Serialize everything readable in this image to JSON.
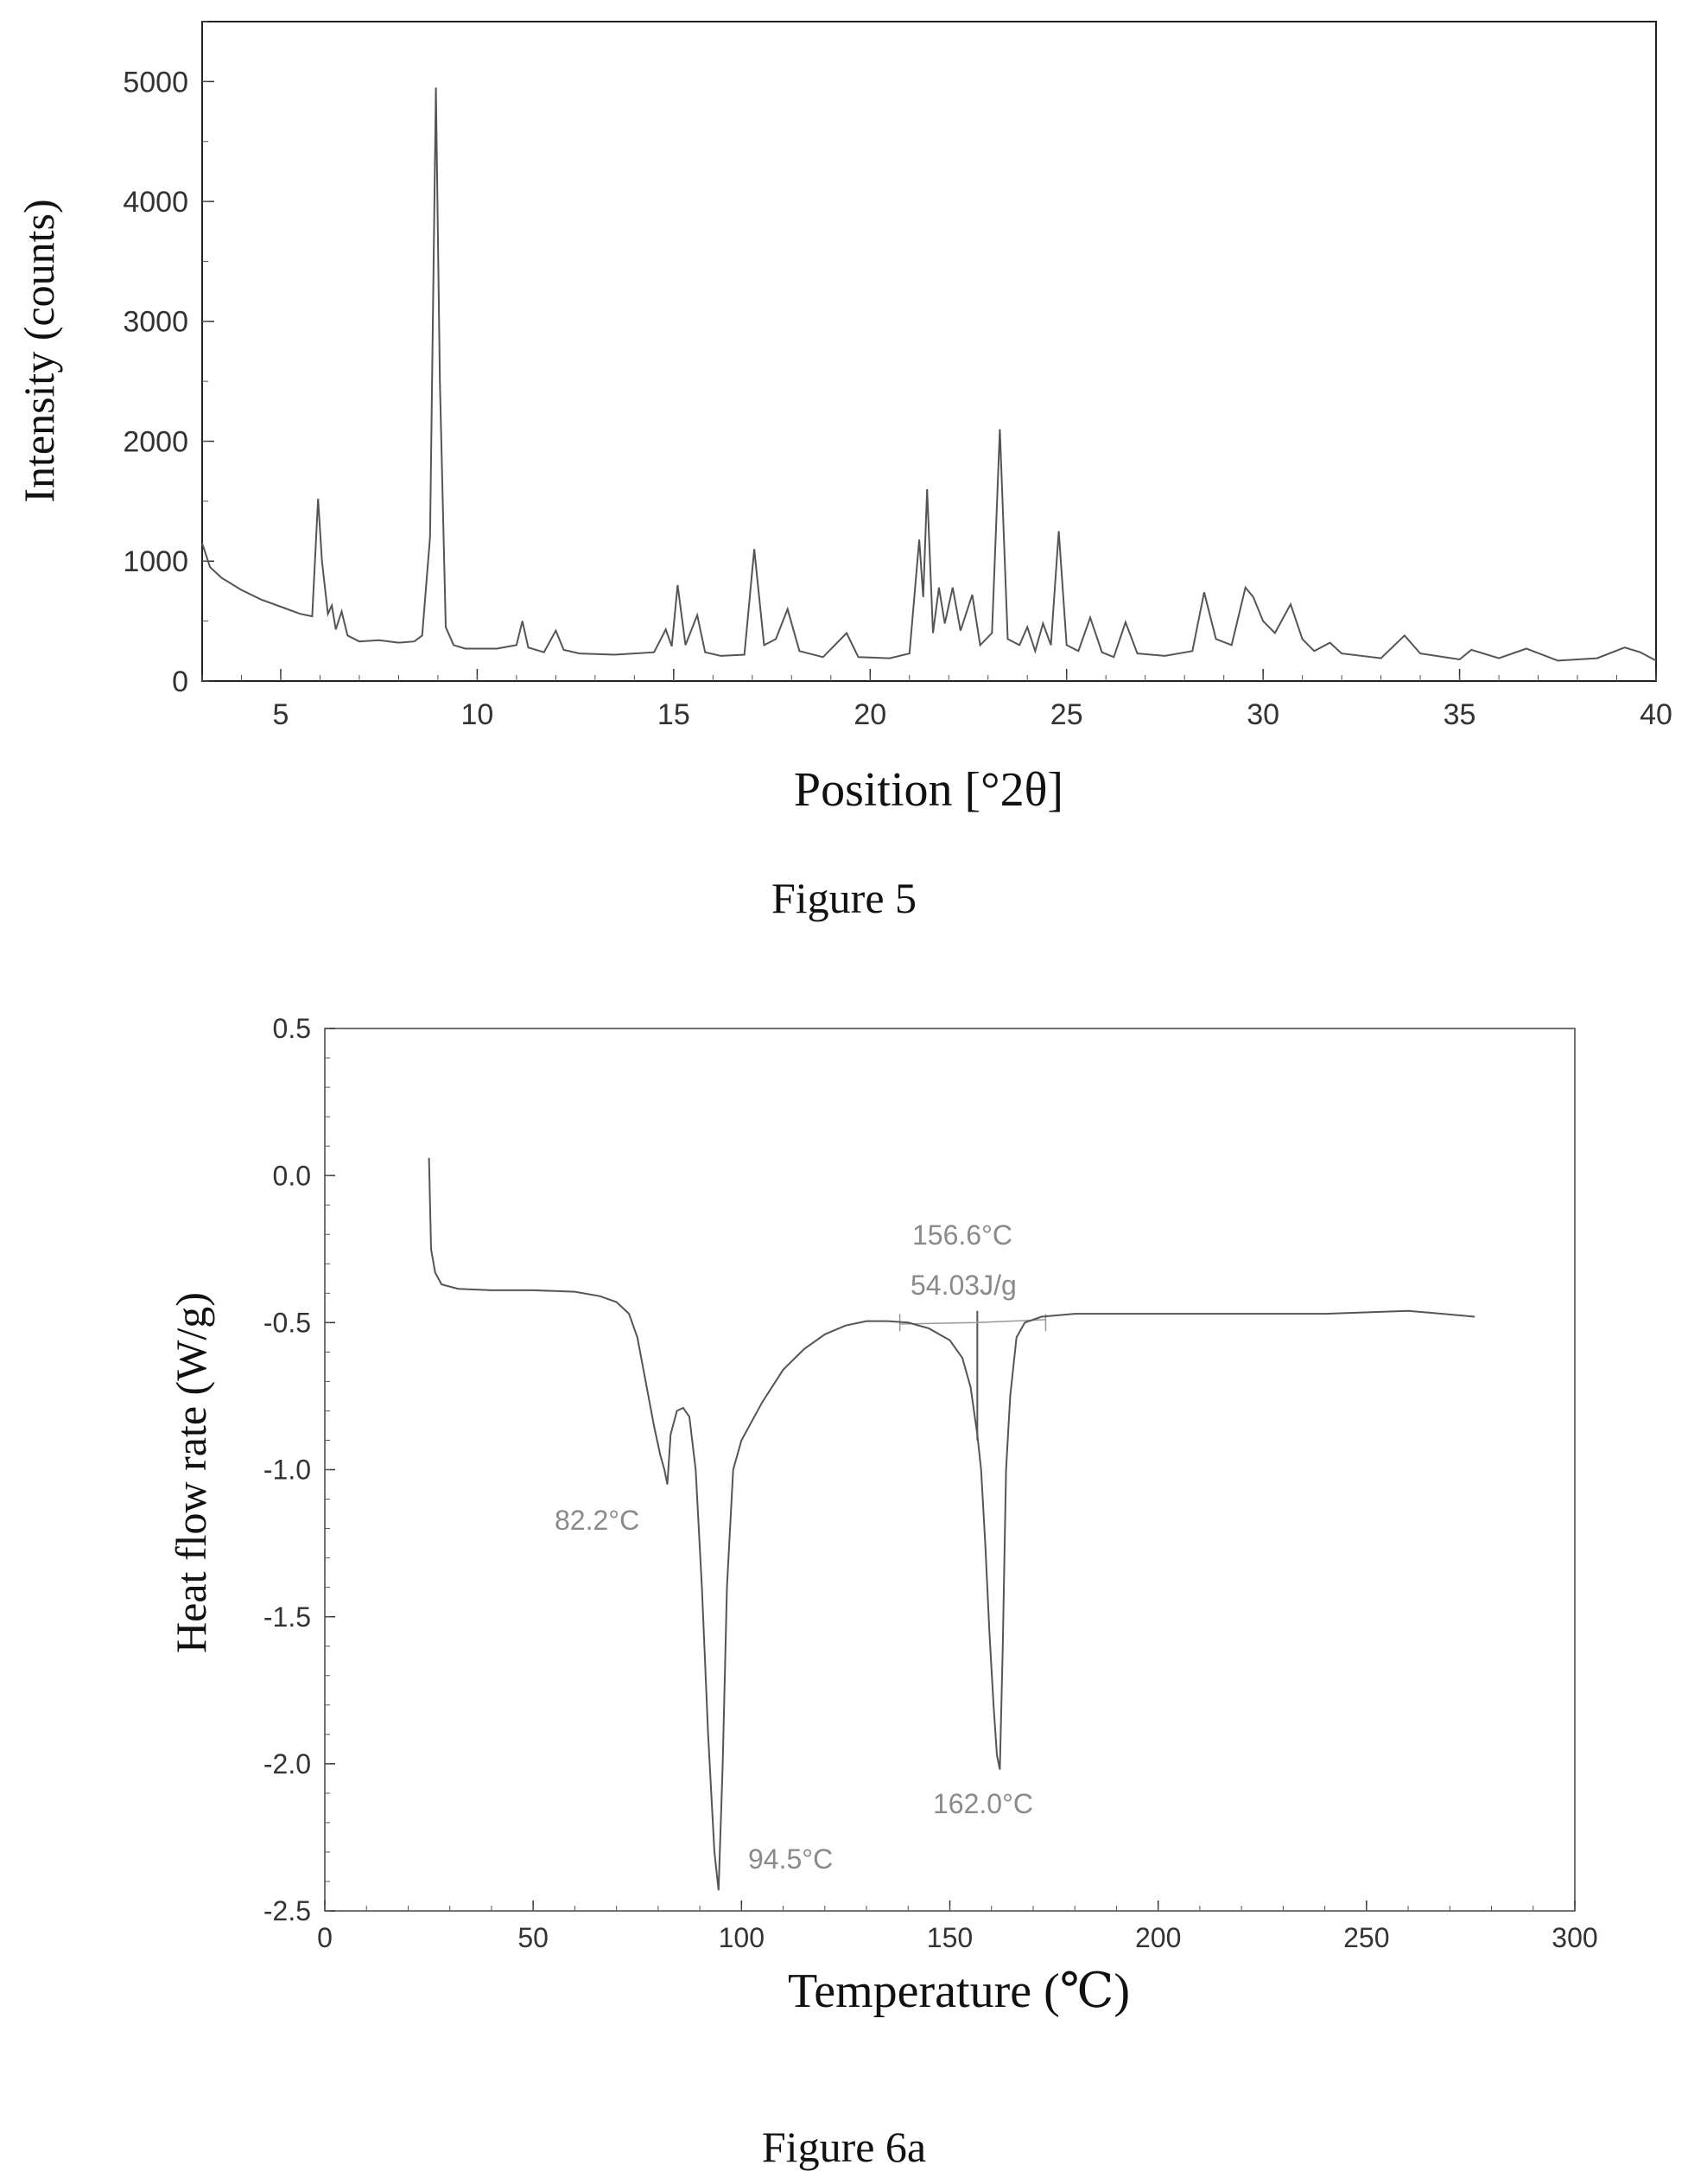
{
  "chart_data": [
    {
      "type": "line",
      "xlabel": "Position [°2θ]",
      "ylabel": "Intensity (counts)",
      "xlim": [
        3,
        40
      ],
      "ylim": [
        0,
        5500
      ],
      "xticks": [
        5,
        10,
        15,
        20,
        25,
        30,
        35,
        40
      ],
      "yticks": [
        0,
        1000,
        2000,
        3000,
        4000,
        5000
      ],
      "grid": false,
      "series": [
        {
          "x": [
            3.0,
            3.2,
            3.5,
            4.0,
            4.5,
            5.0,
            5.5,
            5.8,
            5.95,
            6.05,
            6.2,
            6.3,
            6.4,
            6.55,
            6.7,
            7.0,
            7.5,
            8.0,
            8.4,
            8.6,
            8.8,
            8.95,
            9.05,
            9.2,
            9.4,
            9.7,
            10.0,
            10.5,
            11.0,
            11.15,
            11.3,
            11.7,
            12.0,
            12.2,
            12.6,
            13.5,
            14.5,
            14.8,
            14.95,
            15.1,
            15.3,
            15.6,
            15.8,
            16.2,
            16.8,
            17.05,
            17.3,
            17.6,
            17.9,
            18.2,
            18.8,
            19.4,
            19.7,
            20.5,
            21.0,
            21.25,
            21.35,
            21.45,
            21.6,
            21.75,
            21.9,
            22.1,
            22.3,
            22.6,
            22.8,
            23.1,
            23.3,
            23.5,
            23.8,
            24.0,
            24.2,
            24.4,
            24.6,
            24.8,
            25.0,
            25.3,
            25.6,
            25.9,
            26.2,
            26.5,
            26.8,
            27.5,
            28.2,
            28.5,
            28.8,
            29.2,
            29.55,
            29.75,
            30.0,
            30.3,
            30.7,
            31.0,
            31.3,
            31.7,
            32.0,
            33.0,
            33.6,
            34.0,
            35.0,
            35.3,
            36.0,
            36.7,
            37.5,
            38.5,
            39.2,
            39.6,
            40.0
          ],
          "y": [
            1150,
            950,
            860,
            760,
            680,
            620,
            560,
            540,
            1520,
            1000,
            560,
            630,
            430,
            580,
            380,
            330,
            340,
            320,
            330,
            380,
            1200,
            4950,
            2500,
            450,
            300,
            270,
            270,
            270,
            300,
            500,
            280,
            240,
            420,
            260,
            230,
            220,
            240,
            430,
            290,
            800,
            300,
            550,
            240,
            210,
            220,
            1100,
            300,
            350,
            600,
            250,
            200,
            400,
            200,
            190,
            230,
            1180,
            700,
            1600,
            400,
            780,
            480,
            780,
            420,
            720,
            300,
            400,
            2100,
            350,
            300,
            450,
            250,
            480,
            300,
            1250,
            300,
            250,
            530,
            240,
            200,
            490,
            230,
            210,
            250,
            740,
            350,
            300,
            780,
            700,
            500,
            400,
            640,
            350,
            250,
            320,
            230,
            190,
            380,
            230,
            180,
            260,
            190,
            270,
            170,
            190,
            280,
            240,
            170
          ]
        }
      ]
    },
    {
      "type": "line",
      "xlabel": "Temperature (℃)",
      "ylabel": "Heat flow rate (W/g)",
      "xlim": [
        0,
        300
      ],
      "ylim": [
        -2.5,
        0.5
      ],
      "xticks": [
        0,
        50,
        100,
        150,
        200,
        250,
        300
      ],
      "yticks": [
        "0.5",
        "0.0",
        "-0.5",
        "-1.0",
        "-1.5",
        "-2.0",
        "-2.5"
      ],
      "grid": false,
      "series": [
        {
          "x": [
            25,
            25.5,
            26.5,
            28,
            32,
            40,
            50,
            60,
            66,
            70,
            73,
            75,
            77,
            79,
            80.5,
            81.5,
            82.2,
            83,
            84.5,
            86,
            87.5,
            89,
            90.5,
            92,
            93.5,
            94.5,
            95.5,
            96.5,
            98,
            100,
            105,
            110,
            115,
            120,
            125,
            130,
            135,
            140,
            145,
            150,
            153,
            155,
            156.6,
            157.5,
            158.5,
            159.5,
            160.5,
            161.3,
            162,
            162.7,
            163.5,
            164.5,
            166,
            168,
            172,
            180,
            200,
            220,
            240,
            260,
            276
          ],
          "y": [
            0.06,
            -0.25,
            -0.33,
            -0.37,
            -0.385,
            -0.39,
            -0.39,
            -0.395,
            -0.41,
            -0.43,
            -0.47,
            -0.55,
            -0.7,
            -0.85,
            -0.95,
            -1.0,
            -1.05,
            -0.88,
            -0.8,
            -0.79,
            -0.82,
            -1.0,
            -1.4,
            -1.9,
            -2.3,
            -2.43,
            -2.0,
            -1.4,
            -1.0,
            -0.9,
            -0.77,
            -0.66,
            -0.59,
            -0.54,
            -0.51,
            -0.495,
            -0.495,
            -0.5,
            -0.52,
            -0.56,
            -0.62,
            -0.72,
            -0.88,
            -1.0,
            -1.25,
            -1.55,
            -1.8,
            -1.97,
            -2.02,
            -1.6,
            -1.0,
            -0.75,
            -0.55,
            -0.5,
            -0.48,
            -0.47,
            -0.47,
            -0.47,
            -0.47,
            -0.46,
            -0.48
          ]
        }
      ],
      "annotations": [
        "82.2°C",
        "94.5°C",
        "156.6°C",
        "54.03J/g",
        "162.0°C"
      ]
    }
  ],
  "captions": {
    "fig5": "Figure 5",
    "fig6a": "Figure 6a"
  }
}
